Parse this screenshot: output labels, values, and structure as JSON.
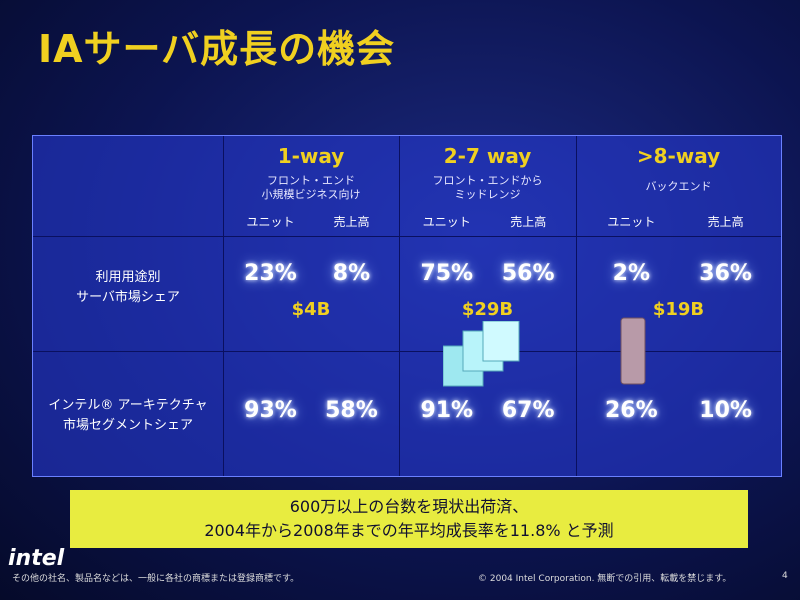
{
  "title": "IAサーバ成長の機会",
  "table": {
    "columns": [
      {
        "heading": "1-way",
        "subtitle": [
          "フロント・エンド",
          "小規模ビジネス向け"
        ],
        "units": [
          "ユニット",
          "売上高"
        ],
        "usage_share": [
          "23%",
          "8%"
        ],
        "total": "$4B",
        "ia_share": [
          "93%",
          "58%"
        ]
      },
      {
        "heading": "2-7 way",
        "subtitle": [
          "フロント・エンドから",
          "ミッドレンジ"
        ],
        "units": [
          "ユニット",
          "売上高"
        ],
        "usage_share": [
          "75%",
          "56%"
        ],
        "total": "$29B",
        "ia_share": [
          "91%",
          "67%"
        ]
      },
      {
        "heading": ">8-way",
        "subtitle": [
          "バックエンド"
        ],
        "units": [
          "ユニット",
          "売上高"
        ],
        "usage_share": [
          "2%",
          "36%"
        ],
        "total": "$19B",
        "ia_share": [
          "26%",
          "10%"
        ]
      }
    ],
    "row_labels": [
      [
        "利用用途別",
        "サーバ市場シェア"
      ],
      [
        "インテル® アーキテクチャ",
        "市場セグメントシェア"
      ]
    ]
  },
  "callout": [
    "600万以上の台数を現状出荷済、",
    "2004年から2008年までの年平均成長率を11.8% と予測"
  ],
  "footer": {
    "logo": "intel",
    "trademark": "その他の社名、製品名などは、一般に各社の商標または登録商標です。",
    "copyright": "© 2004 Intel Corporation. 無断での引用、転載を禁じます。",
    "page": "4"
  }
}
